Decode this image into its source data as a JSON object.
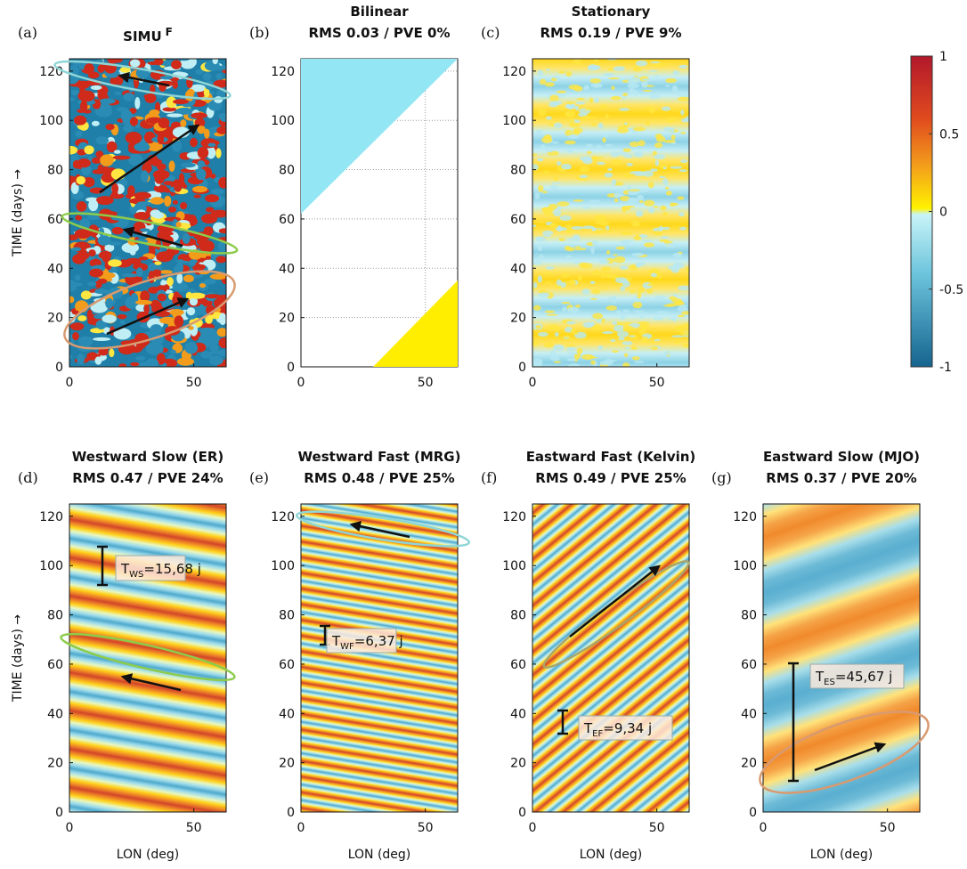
{
  "chart_data": [
    {
      "type": "heatmap",
      "panel": "(a)",
      "title": "SIMU",
      "title_sup": "F",
      "title_color": "#111111",
      "ylabel": "TIME (days) →",
      "xlim": [
        0,
        63
      ],
      "ylim": [
        0,
        125
      ],
      "xticks": [
        0,
        50
      ],
      "yticks": [
        0,
        20,
        40,
        60,
        80,
        100,
        120
      ]
    },
    {
      "type": "heatmap",
      "panel": "(b)",
      "title": "Bilinear",
      "subtitle": "RMS 0.03 / PVE 0%",
      "title_color": "#e57aa6",
      "grid": true,
      "xlim": [
        0,
        63
      ],
      "ylim": [
        0,
        125
      ],
      "xticks": [
        0,
        50
      ],
      "yticks": [
        0,
        20,
        40,
        60,
        80,
        100,
        120
      ]
    },
    {
      "type": "heatmap",
      "panel": "(c)",
      "title": "Stationary",
      "subtitle": "RMS 0.19 / PVE 9%",
      "title_color": "#b55fcf",
      "xlim": [
        0,
        63
      ],
      "ylim": [
        0,
        125
      ],
      "xticks": [
        0,
        50
      ],
      "yticks": [
        0,
        20,
        40,
        60,
        80,
        100,
        120
      ]
    },
    {
      "type": "heatmap",
      "panel": "(d)",
      "title": "Westward Slow (ER)",
      "subtitle": "RMS 0.47 / PVE 24%",
      "title_color": "#7cc63a",
      "ylabel": "TIME (days) →",
      "xlabel": "LON (deg)",
      "annotation": {
        "main": "T",
        "sub": "WS",
        "rest": "=15,68 j"
      },
      "xlim": [
        0,
        63
      ],
      "ylim": [
        0,
        125
      ],
      "xticks": [
        0,
        50
      ],
      "yticks": [
        0,
        20,
        40,
        60,
        80,
        100,
        120
      ]
    },
    {
      "type": "heatmap",
      "panel": "(e)",
      "title": "Westward Fast (MRG)",
      "subtitle": "RMS 0.48 / PVE 25%",
      "title_color": "#3ebfd0",
      "xlabel": "LON (deg)",
      "annotation": {
        "main": "T",
        "sub": "WF",
        "rest": "=6,37 j"
      },
      "xlim": [
        0,
        63
      ],
      "ylim": [
        0,
        125
      ],
      "xticks": [
        0,
        50
      ],
      "yticks": [
        0,
        20,
        40,
        60,
        80,
        100,
        120
      ]
    },
    {
      "type": "heatmap",
      "panel": "(f)",
      "title": "Eastward Fast (Kelvin)",
      "subtitle": "RMS 0.49 / PVE 25%",
      "title_color": "#ecb232",
      "xlabel": "LON (deg)",
      "annotation": {
        "main": "T",
        "sub": "EF",
        "rest": "=9,34 j"
      },
      "xlim": [
        0,
        63
      ],
      "ylim": [
        0,
        125
      ],
      "xticks": [
        0,
        50
      ],
      "yticks": [
        0,
        20,
        40,
        60,
        80,
        100,
        120
      ]
    },
    {
      "type": "heatmap",
      "panel": "(g)",
      "title": "Eastward Slow (MJO)",
      "subtitle": "RMS 0.37 / PVE 20%",
      "title_color": "#ea5628",
      "xlabel": "LON (deg)",
      "annotation": {
        "main": "T",
        "sub": "ES",
        "rest": "=45,67 j"
      },
      "xlim": [
        0,
        63
      ],
      "ylim": [
        0,
        125
      ],
      "xticks": [
        0,
        50
      ],
      "yticks": [
        0,
        20,
        40,
        60,
        80,
        100,
        120
      ]
    }
  ],
  "colorbar": {
    "lim": [
      -1,
      1
    ],
    "ticks": [
      -1,
      -0.5,
      0,
      0.5,
      1
    ]
  }
}
